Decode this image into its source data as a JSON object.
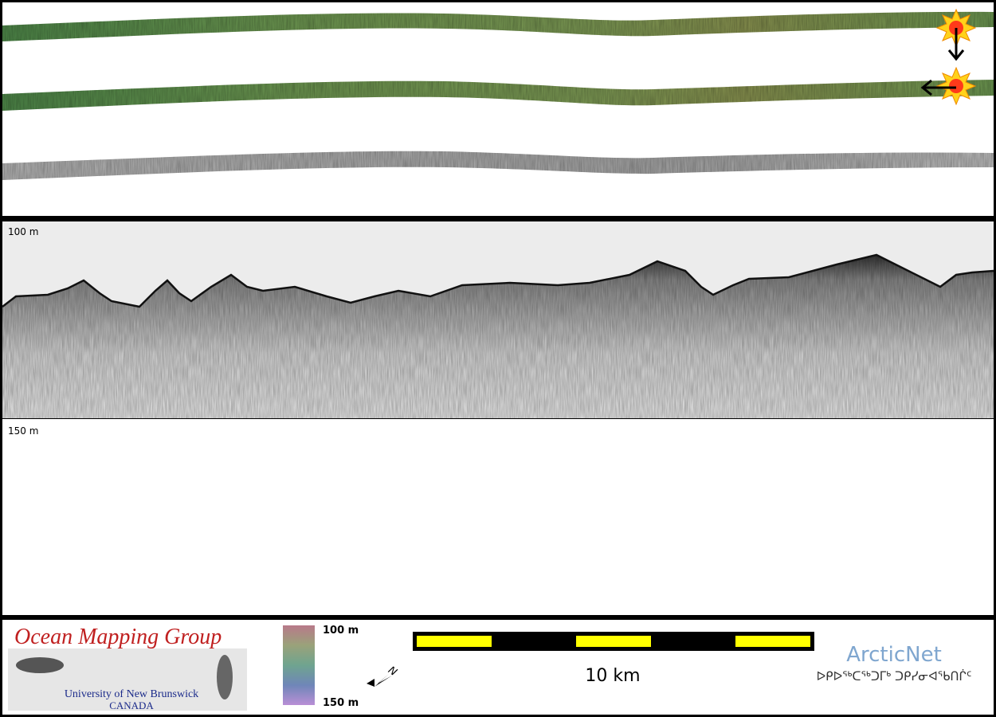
{
  "profile": {
    "top_label": "100 m",
    "bottom_label": "150 m"
  },
  "legend": {
    "colorbar_top": "100 m",
    "colorbar_bottom": "150 m",
    "north": "N",
    "scale": "10 km"
  },
  "logo": {
    "title": "Ocean Mapping Group",
    "university": "University of New Brunswick",
    "country": "CANADA"
  },
  "partner": {
    "name": "ArcticNet",
    "subtitle": "ᐅᑭᐅᖅᑕᖅᑐᒥᒃ ᑐᑭᓯᓂᐊᖃᑎᒌᑦ"
  }
}
